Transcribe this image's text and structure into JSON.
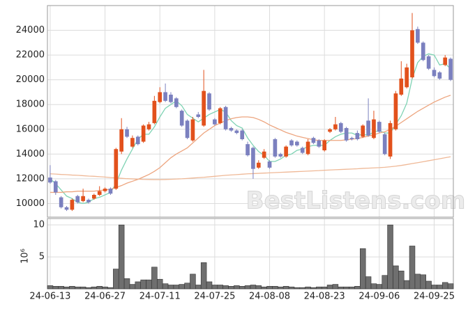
{
  "chart_data": {
    "type": "candlestick",
    "categories": [
      "24-06-13",
      null,
      null,
      null,
      null,
      null,
      null,
      null,
      null,
      null,
      "24-06-27",
      null,
      null,
      null,
      null,
      null,
      null,
      null,
      null,
      null,
      "24-07-11",
      null,
      null,
      null,
      null,
      null,
      null,
      null,
      null,
      null,
      "24-07-25",
      null,
      null,
      null,
      null,
      null,
      null,
      null,
      null,
      null,
      "24-08-08",
      null,
      null,
      null,
      null,
      null,
      null,
      null,
      null,
      null,
      "24-08-23",
      null,
      null,
      null,
      null,
      null,
      null,
      null,
      null,
      null,
      "24-09-06",
      null,
      null,
      null,
      null,
      null,
      null,
      null,
      null,
      null,
      "24-09-25",
      null,
      null,
      null
    ],
    "open": [
      12100,
      11800,
      10500,
      9700,
      9500,
      10600,
      10200,
      10300,
      10400,
      10700,
      11000,
      11200,
      11200,
      14200,
      16000,
      14600,
      15400,
      15000,
      16000,
      16500,
      18200,
      19000,
      18800,
      18500,
      17500,
      16700,
      15100,
      17200,
      16300,
      18900,
      16800,
      16500,
      17800,
      16100,
      15900,
      15900,
      14800,
      14500,
      12900,
      13700,
      13400,
      15200,
      14000,
      13800,
      15100,
      15000,
      14500,
      14000,
      15300,
      15100,
      14300,
      15800,
      16000,
      16500,
      16100,
      15300,
      15700,
      15400,
      16700,
      15300,
      16600,
      15600,
      13800,
      16000,
      18800,
      19400,
      20200,
      24100,
      23000,
      21900,
      20800,
      20600,
      21200,
      21700
    ],
    "high": [
      13100,
      11900,
      10600,
      9800,
      10400,
      10700,
      11200,
      10400,
      10800,
      11400,
      11300,
      11300,
      14500,
      16900,
      16200,
      15500,
      15500,
      16400,
      16600,
      18700,
      19400,
      19700,
      19000,
      18600,
      17600,
      16800,
      17000,
      17400,
      20800,
      19000,
      16900,
      17800,
      17900,
      16200,
      16000,
      16000,
      15000,
      14600,
      13500,
      14400,
      13500,
      15300,
      14100,
      14700,
      15200,
      15100,
      14600,
      15200,
      15400,
      15200,
      15200,
      16100,
      17000,
      16600,
      16200,
      15400,
      15900,
      16400,
      18500,
      17500,
      16700,
      15700,
      16700,
      19100,
      21500,
      21300,
      25400,
      24300,
      23100,
      22000,
      21000,
      20700,
      22000,
      21800
    ],
    "low": [
      11600,
      10700,
      9600,
      9400,
      9400,
      10000,
      10100,
      10000,
      10300,
      10600,
      10900,
      10700,
      11100,
      14000,
      15300,
      14500,
      14700,
      14900,
      15900,
      16400,
      18100,
      18200,
      18100,
      17700,
      16200,
      15200,
      15000,
      16900,
      16200,
      17500,
      16300,
      16400,
      15900,
      15800,
      15600,
      15100,
      13800,
      12000,
      12800,
      13600,
      12800,
      13700,
      13700,
      13700,
      14600,
      14600,
      14000,
      13900,
      14800,
      14500,
      14200,
      15700,
      15900,
      15700,
      15000,
      15100,
      15100,
      15300,
      15400,
      15200,
      15700,
      13900,
      13600,
      15900,
      18700,
      19300,
      20100,
      22900,
      21500,
      20800,
      20200,
      20000,
      21100,
      19900
    ],
    "close": [
      11700,
      10900,
      9700,
      9500,
      10300,
      10100,
      10600,
      10100,
      10700,
      11000,
      11200,
      10800,
      14400,
      16000,
      15400,
      15300,
      14800,
      16300,
      16400,
      18300,
      19000,
      18300,
      18200,
      17800,
      16300,
      15300,
      16800,
      17000,
      19100,
      17600,
      16400,
      17700,
      16000,
      15900,
      15700,
      15200,
      13900,
      12800,
      13300,
      14200,
      12900,
      13800,
      13800,
      14600,
      14700,
      14700,
      14100,
      15000,
      14900,
      14600,
      15100,
      16000,
      16400,
      15800,
      15100,
      15200,
      15200,
      16300,
      15500,
      16800,
      15800,
      14000,
      16500,
      18900,
      20100,
      21000,
      24000,
      23000,
      21600,
      20900,
      20300,
      20100,
      21800,
      20000
    ],
    "volume": [
      0.5,
      0.4,
      0.4,
      0.3,
      0.4,
      0.3,
      0.3,
      0.2,
      0.3,
      0.4,
      0.3,
      0.2,
      3.1,
      10,
      1.6,
      0.7,
      1.1,
      1.4,
      1.4,
      3.4,
      1.5,
      0.8,
      0.6,
      0.6,
      0.7,
      0.9,
      2.3,
      0.6,
      4.1,
      1.1,
      0.6,
      0.6,
      0.5,
      0.4,
      0.5,
      0.4,
      0.5,
      0.6,
      0.5,
      0.3,
      0.4,
      0.4,
      0.3,
      0.4,
      0.3,
      0.2,
      0.2,
      0.3,
      0.2,
      0.3,
      0.3,
      0.6,
      0.7,
      0.3,
      0.3,
      0.3,
      0.4,
      6.3,
      1.9,
      0.8,
      0.7,
      2.1,
      10,
      3.6,
      2.8,
      1.3,
      6.7,
      2.3,
      2.2,
      1.2,
      0.6,
      0.6,
      1.0,
      0.8
    ],
    "up_color": "#e2511c",
    "down_color": "#7b80bf",
    "volume_color": "#6f6f6f",
    "series": [
      {
        "color": "#7fd3b4",
        "values": [
          12000,
          11600,
          11100,
          10600,
          10400,
          10100,
          10000,
          10100,
          10400,
          10500,
          10700,
          10900,
          11600,
          12700,
          13600,
          14400,
          15200,
          15600,
          15600,
          16200,
          17000,
          17700,
          18000,
          18300,
          17900,
          17200,
          16900,
          16600,
          16900,
          17200,
          17400,
          17600,
          17400,
          16700,
          16300,
          16100,
          15300,
          14700,
          14200,
          13900,
          13400,
          13400,
          13600,
          13900,
          14000,
          14300,
          14400,
          14600,
          14700,
          14700,
          14700,
          15100,
          15400,
          15600,
          15700,
          15700,
          15500,
          15600,
          15500,
          15800,
          15900,
          15700,
          15700,
          16400,
          17100,
          18100,
          20100,
          21400,
          21900,
          22100,
          22000,
          21200,
          21300,
          20900
        ]
      },
      {
        "color": "#eda57f",
        "values": [
          10900,
          10900,
          10900,
          10950,
          10950,
          11000,
          11000,
          11000,
          11000,
          11050,
          11100,
          11150,
          11300,
          11450,
          11650,
          11800,
          11950,
          12150,
          12350,
          12600,
          12900,
          13300,
          13700,
          14000,
          14250,
          14500,
          14900,
          15300,
          15700,
          16000,
          16300,
          16500,
          16700,
          16850,
          16950,
          17000,
          17000,
          16950,
          16800,
          16600,
          16350,
          16150,
          15950,
          15750,
          15600,
          15450,
          15350,
          15250,
          15150,
          15100,
          15100,
          15100,
          15100,
          15100,
          15150,
          15200,
          15250,
          15350,
          15450,
          15550,
          15700,
          15800,
          16000,
          16250,
          16550,
          16850,
          17150,
          17450,
          17700,
          17950,
          18200,
          18400,
          18600,
          18750
        ]
      },
      {
        "color": "#efb896",
        "values": [
          12400,
          12380,
          12350,
          12330,
          12300,
          12280,
          12250,
          12220,
          12200,
          12170,
          12140,
          12100,
          12070,
          12040,
          12010,
          11990,
          11970,
          11950,
          11940,
          11930,
          11930,
          11940,
          11960,
          11980,
          12000,
          12030,
          12060,
          12090,
          12120,
          12160,
          12200,
          12240,
          12280,
          12310,
          12340,
          12370,
          12400,
          12420,
          12440,
          12460,
          12480,
          12500,
          12520,
          12540,
          12560,
          12580,
          12600,
          12620,
          12640,
          12660,
          12690,
          12710,
          12730,
          12750,
          12770,
          12790,
          12810,
          12840,
          12860,
          12880,
          12900,
          12930,
          12970,
          13020,
          13080,
          13150,
          13230,
          13300,
          13380,
          13460,
          13540,
          13620,
          13700,
          13780
        ]
      }
    ],
    "ylim": [
      8900,
      26000
    ],
    "yticks": [
      10000,
      12000,
      14000,
      16000,
      18000,
      20000,
      22000,
      24000
    ],
    "volume_ylim": [
      0,
      11
    ],
    "volume_yticks": [
      5,
      10
    ],
    "volume_label": "10⁶",
    "watermark": "BestListens.com",
    "grid": true
  }
}
